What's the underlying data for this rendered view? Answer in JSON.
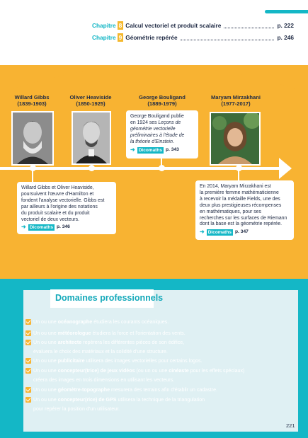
{
  "toc": [
    {
      "chapitre": "Chapitre",
      "num": "8",
      "title": "Calcul vectoriel et produit scalaire",
      "page": "p. 222"
    },
    {
      "chapitre": "Chapitre",
      "num": "9",
      "title": "Géométrie repérée",
      "page": "p. 246"
    }
  ],
  "people": [
    {
      "name": "Willard Gibbs",
      "dates": "(1839-1903)"
    },
    {
      "name": "Oliver Heaviside",
      "dates": "(1850-1925)"
    },
    {
      "name": "George Bouligand",
      "dates": "(1889-1979)"
    },
    {
      "name": "Maryam Mirzakhani",
      "dates": "(1977-2017)"
    }
  ],
  "cards": {
    "bouligand": {
      "l1": "George Bouligand publie",
      "l2": "en 1924 ses",
      "l2i": "Leçons de",
      "l3i": "géométrie vectorielle",
      "l4i": "préliminaires à l'étude de",
      "l5i": "la théorie d'Einstein",
      "l5e": ".",
      "badge": "Dicomaths",
      "page": "p. 343"
    },
    "gibbs": {
      "lines": [
        "Willard Gibbs et Oliver Heaviside,",
        "poursuivent l'œuvre d'Hamilton et",
        "fondent l'analyse vectorielle. Gibbs est",
        "par ailleurs à l'origine des notations",
        "du produit scalaire et du produit",
        "vectoriel de deux vecteurs."
      ],
      "badge": "Dicomaths",
      "page": "p. 346"
    },
    "mirzakhani": {
      "lines": [
        "En 2014, Maryam Mirzakhani est",
        "la première femme mathématicienne",
        "à recevoir la médaille Fields, une des",
        "deux plus prestigieuses récompenses",
        "en mathématiques, pour ses",
        "recherches sur les surfaces de Riemann",
        "dont la base est la géométrie repérée."
      ],
      "badge": "Dicomaths",
      "page": "p. 347"
    }
  },
  "domaines": {
    "title": "Domaines professionnels",
    "items": [
      {
        "a": "Un ou une ",
        "b": "océanographe",
        "c": " étudiera les courants océaniques.",
        "d": "",
        "e": "",
        "cont": ""
      },
      {
        "a": "Un ou une ",
        "b": "météorologue",
        "c": " étudiera la force et l'orientation des vents.",
        "d": "",
        "e": "",
        "cont": ""
      },
      {
        "a": "Un ou une ",
        "b": "architecte",
        "c": " repèrera les différentes pièces de son édifice,",
        "d": "",
        "e": "",
        "cont": "évaluera le choix des matériaux et la solidité d'une structure."
      },
      {
        "a": "Un ou une ",
        "b": "publicitaire",
        "c": " utilisera des images vectorielles pour certains logos.",
        "d": "",
        "e": "",
        "cont": ""
      },
      {
        "a": "Un ou une ",
        "b": "concepteur(trice) de jeux vidéos",
        "c": " (ou un ou une ",
        "d": "cinéaste",
        "e": " pour les effets spéciaux)",
        "cont": "créera des images en trois dimensions en utilisant les vecteurs."
      },
      {
        "a": "Un ou une ",
        "b": "géomètre-topographe",
        "c": " mesurera des terrains afin d'établir un cadastre.",
        "d": "",
        "e": "",
        "cont": ""
      },
      {
        "a": "Un ou une ",
        "b": "concepteur(rice) de GPS",
        "c": " utilisera la technique de la triangulation",
        "d": "",
        "e": "",
        "cont": "pour repérer la position d'un utilisateur."
      }
    ]
  },
  "page_number": "221",
  "colors": {
    "teal": "#14b7c6",
    "yellow": "#f8b332",
    "navy": "#1f2a44"
  }
}
